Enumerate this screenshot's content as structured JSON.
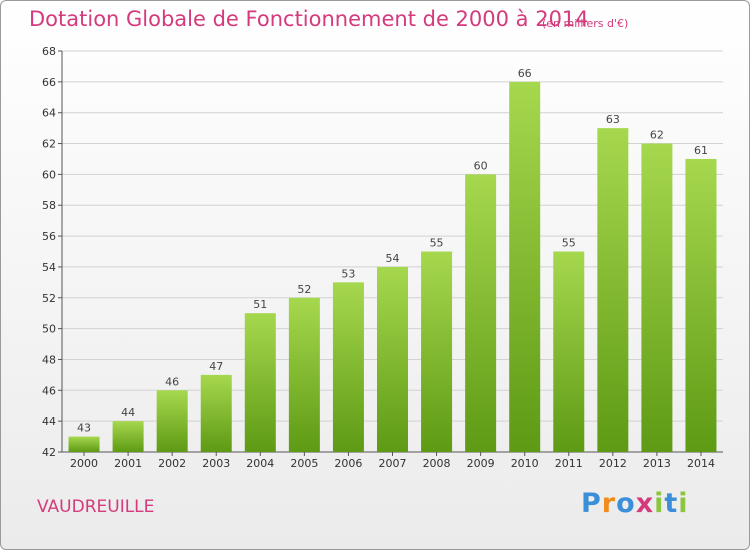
{
  "title": "Dotation Globale de Fonctionnement de 2000 à 2014",
  "unit": "(en milliers d'€)",
  "commune": "VAUDREUILLE",
  "logo": {
    "letters": [
      "P",
      "r",
      "o",
      "x",
      "i",
      "t",
      "i"
    ],
    "colors": [
      "#3a8fd8",
      "#f08c1c",
      "#3a8fd8",
      "#d43a7c",
      "#8cc63f",
      "#3a8fd8",
      "#8cc63f"
    ]
  },
  "colors": {
    "bar_top": "#a6d84e",
    "bar_bottom": "#5e9a14",
    "accent": "#d43a7c"
  },
  "chart_data": {
    "type": "bar",
    "categories": [
      "2000",
      "2001",
      "2002",
      "2003",
      "2004",
      "2005",
      "2006",
      "2007",
      "2008",
      "2009",
      "2010",
      "2011",
      "2012",
      "2013",
      "2014"
    ],
    "values": [
      43,
      44,
      46,
      47,
      51,
      52,
      53,
      54,
      55,
      60,
      66,
      55,
      63,
      62,
      61
    ],
    "ylim": [
      42,
      68
    ],
    "yticks": [
      42,
      44,
      46,
      48,
      50,
      52,
      54,
      56,
      58,
      60,
      62,
      64,
      66,
      68
    ],
    "grid": true
  }
}
